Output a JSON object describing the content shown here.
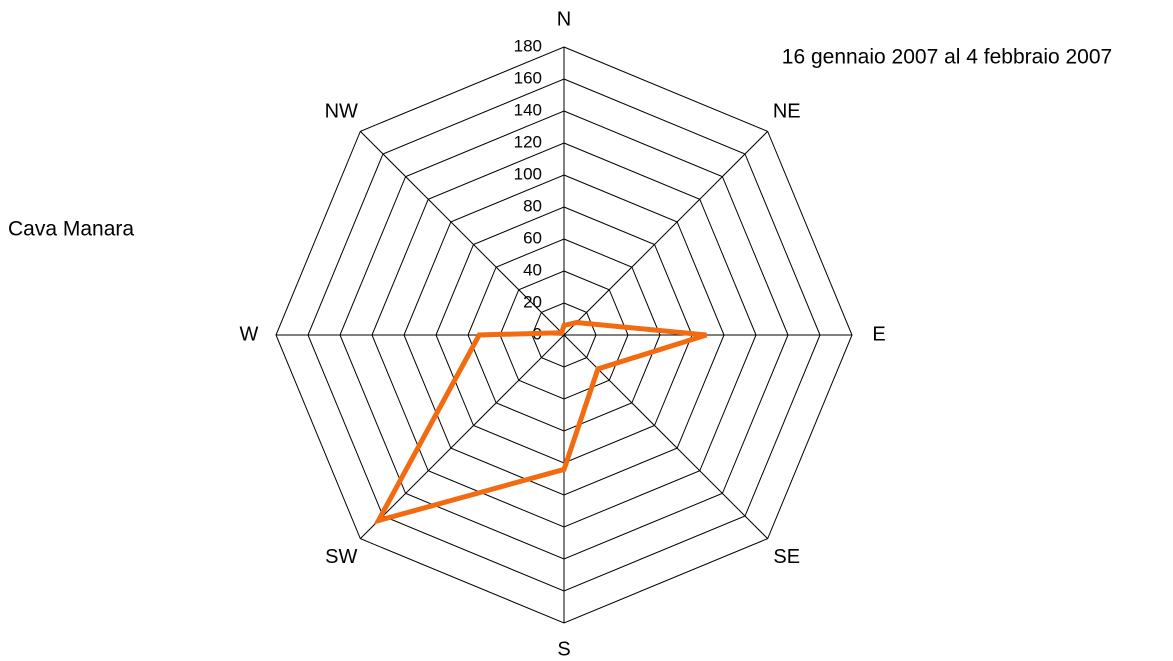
{
  "chart_data": {
    "type": "radar",
    "title": "16 gennaio 2007 al 4 febbraio 2007",
    "categories": [
      "N",
      "NE",
      "E",
      "SE",
      "S",
      "SW",
      "W",
      "NW"
    ],
    "series": [
      {
        "name": "Cava Manara",
        "color": "#f26b10",
        "values": [
          6,
          11,
          89,
          30,
          84,
          164,
          53,
          2
        ]
      }
    ],
    "ylim": [
      0,
      180
    ],
    "yticks": [
      0,
      20,
      40,
      60,
      80,
      100,
      120,
      140,
      160,
      180
    ],
    "grid": true
  }
}
